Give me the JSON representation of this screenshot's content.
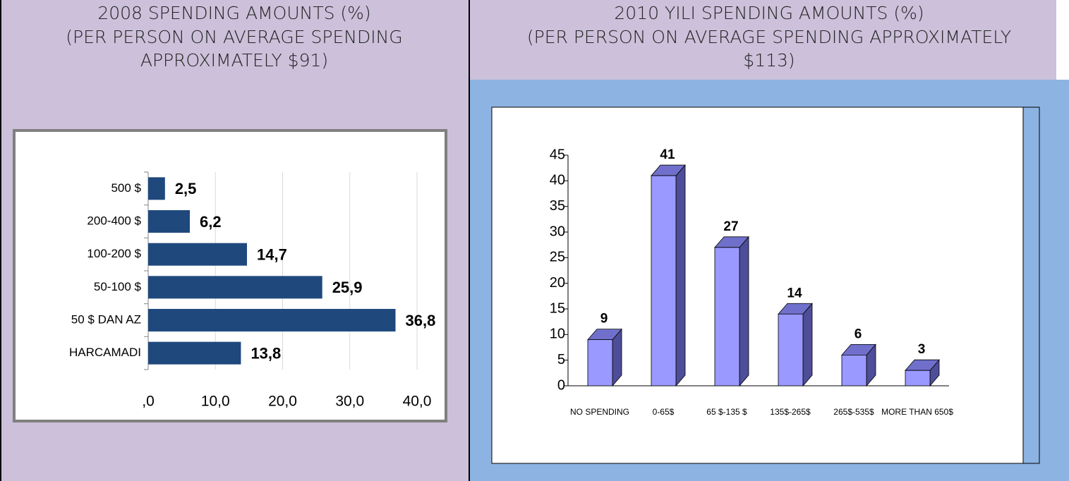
{
  "chart_data": [
    {
      "type": "bar",
      "horizontal": true,
      "title": "2008 SPENDING AMOUNTS (%)",
      "subtitle": [
        "(PER PERSON ON AVERAGE SPENDING",
        "APPROXIMATELY $91)"
      ],
      "categories": [
        "500 $",
        "200-400 $",
        "100-200 $",
        "50-100 $",
        "50 $ DAN AZ",
        "HARCAMADI"
      ],
      "values": [
        2.5,
        6.2,
        14.7,
        25.9,
        36.8,
        13.8
      ],
      "value_labels": [
        "2,5",
        "6,2",
        "14,7",
        "25,9",
        "36,8",
        "13,8"
      ],
      "color": "#1f497d",
      "xlim": [
        0,
        40
      ],
      "xticks": [
        {
          "value": 0,
          "label": ",0"
        },
        {
          "value": 10,
          "label": "10,0"
        },
        {
          "value": 20,
          "label": "20,0"
        },
        {
          "value": 30,
          "label": "30,0"
        },
        {
          "value": 40,
          "label": "40,0"
        }
      ],
      "grid": true
    },
    {
      "type": "bar",
      "three_d": true,
      "title": "2010 YILI SPENDING AMOUNTS (%)",
      "subtitle": [
        "(PER PERSON ON AVERAGE SPENDING APPROXIMATELY",
        "$113)"
      ],
      "categories": [
        "NO SPENDING",
        "0-65$",
        "65 $-135 $",
        "135$-265$",
        "265$-535$",
        "MORE THAN 650$"
      ],
      "values": [
        9,
        41,
        27,
        14,
        6,
        3
      ],
      "color": "#9999ff",
      "ylim": [
        0,
        45
      ],
      "yticks": [
        0,
        5,
        10,
        15,
        20,
        25,
        30,
        35,
        40,
        45
      ],
      "grid": false
    }
  ]
}
